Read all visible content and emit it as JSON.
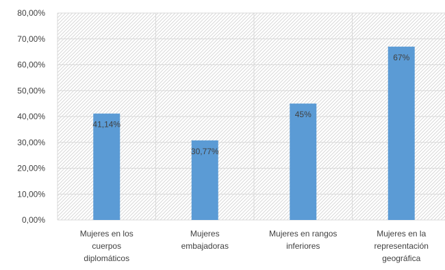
{
  "colors": {
    "bar": "#5b9bd5",
    "grid": "#d9d9d9",
    "hatch": "#d0d0d0",
    "text": "#404040",
    "background": "#ffffff"
  },
  "chart_data": {
    "type": "bar",
    "categories": [
      [
        "Mujeres en los",
        "cuerpos",
        "diplomáticos"
      ],
      [
        "Mujeres",
        "embajadoras"
      ],
      [
        "Mujeres en rangos",
        "inferiores"
      ],
      [
        "Mujeres en la",
        "representación",
        "geográfica"
      ]
    ],
    "values": [
      41.14,
      30.77,
      45,
      67
    ],
    "data_labels": [
      "41,14%",
      "30,77%",
      "45%",
      "67%"
    ],
    "ylim": [
      0,
      80
    ],
    "yticks": [
      {
        "value": 0,
        "label": "0,00%"
      },
      {
        "value": 10,
        "label": "10,00%"
      },
      {
        "value": 20,
        "label": "20,00%"
      },
      {
        "value": 30,
        "label": "30,00%"
      },
      {
        "value": 40,
        "label": "40,00%"
      },
      {
        "value": 50,
        "label": "50,00%"
      },
      {
        "value": 60,
        "label": "60,00%"
      },
      {
        "value": 70,
        "label": "70,00%"
      },
      {
        "value": 80,
        "label": "80,00%"
      }
    ],
    "grid": true,
    "legend": "none",
    "title": "",
    "xlabel": "",
    "ylabel": ""
  }
}
